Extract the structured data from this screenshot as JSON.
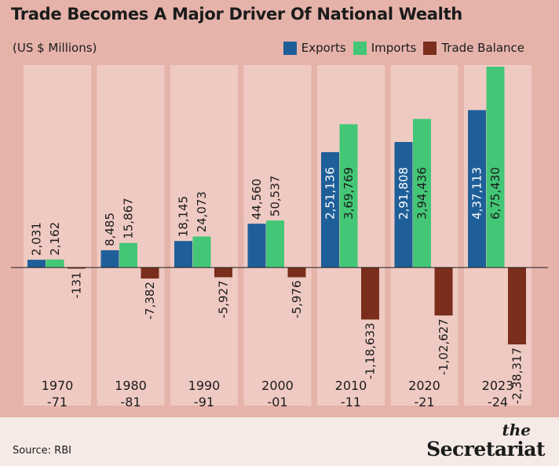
{
  "header": {
    "title": "Trade Becomes A Major Driver Of National Wealth",
    "subtitle": "(US $ Millions)"
  },
  "legend": {
    "exports": "Exports",
    "imports": "Imports",
    "balance": "Trade Balance"
  },
  "colors": {
    "exports": "#1f5f99",
    "imports": "#43c776",
    "balance": "#7a2e1b",
    "panel": "#efcac3",
    "background": "#e6b3ab"
  },
  "chart_data": {
    "type": "bar",
    "title": "Trade Becomes A Major Driver Of National Wealth",
    "ylabel": "(US $ Millions)",
    "categories": [
      "1970\n-71",
      "1980\n-81",
      "1990\n-91",
      "2000\n-01",
      "2010\n-11",
      "2020\n-21",
      "2023\n-24"
    ],
    "series": [
      {
        "name": "Exports",
        "values": [
          2031,
          8485,
          18145,
          44560,
          251136,
          291808,
          437113
        ],
        "labels": [
          "2,031",
          "8,485",
          "18,145",
          "44,560",
          "2,51,136",
          "2,91,808",
          "4,37,113"
        ]
      },
      {
        "name": "Imports",
        "values": [
          2162,
          15867,
          24073,
          50537,
          369769,
          394436,
          675430
        ],
        "labels": [
          "2,162",
          "15,867",
          "24,073",
          "50,537",
          "3,69,769",
          "3,94,436",
          "6,75,430"
        ]
      },
      {
        "name": "Trade Balance",
        "values": [
          -131,
          -7382,
          -5927,
          -5976,
          -118633,
          -102627,
          -238317
        ],
        "labels": [
          "-131",
          "-7,382",
          "-5,927",
          "-5,976",
          "-1,18,633",
          "-1,02,627",
          "-2,38,317"
        ]
      }
    ],
    "scale": "non-linear",
    "legend_position": "top-right",
    "grid": false
  },
  "footer": {
    "source": "Source: RBI",
    "brand_the": "the",
    "brand_name": "Secretariat"
  }
}
